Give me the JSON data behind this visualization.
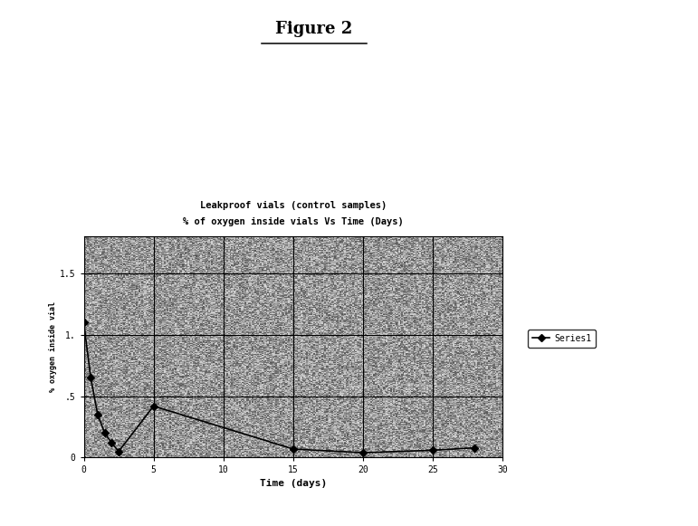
{
  "title_top": "Figure 2",
  "chart_title_line1": "Leakproof vials (control samples)",
  "chart_title_line2": "% of oxygen inside vials Vs Time (Days)",
  "ylabel": "% oxygen inside vial",
  "xlabel": "Time (days)",
  "xlim": [
    0,
    30
  ],
  "ylim": [
    0,
    1.8
  ],
  "ytick_vals": [
    0,
    0.5,
    1.0,
    1.5
  ],
  "ytick_labels": [
    "0",
    ".5",
    "1.",
    "1.5"
  ],
  "xtick_vals": [
    0,
    5,
    10,
    15,
    20,
    25,
    30
  ],
  "xtick_labels": [
    "0",
    "5",
    "10",
    "15",
    "20",
    "25",
    "30"
  ],
  "series1_x": [
    0,
    0.5,
    1,
    1.5,
    2,
    2.5,
    5,
    15,
    20,
    25,
    28
  ],
  "series1_y": [
    1.1,
    0.65,
    0.35,
    0.2,
    0.12,
    0.05,
    0.42,
    0.07,
    0.04,
    0.06,
    0.08
  ],
  "legend_label": "Series1",
  "plot_bg_color": "#b0b0b0",
  "figure_bg": "#ffffff",
  "line_color": "#000000",
  "marker_color": "#000000",
  "grid_color": "#000000"
}
